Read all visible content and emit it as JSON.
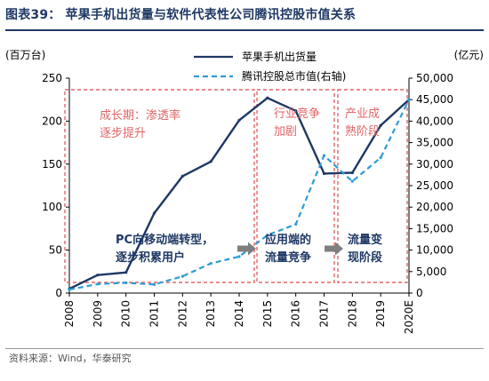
{
  "figure_title": "图表39：  苹果手机出货量与软件代表性公司腾讯控股市值关系",
  "source": "资料来源：Wind，华泰研究",
  "chart_data": {
    "type": "line",
    "categories": [
      "2008",
      "2009",
      "2010",
      "2011",
      "2012",
      "2013",
      "2014",
      "2015",
      "2016",
      "2017",
      "2018",
      "2019",
      "2020E"
    ],
    "left_unit": "(百万台)",
    "right_unit": "(亿元)",
    "ylim_left": [
      0,
      250
    ],
    "ylim_right": [
      0,
      50000
    ],
    "left_ticks": [
      "0",
      "50",
      "100",
      "150",
      "200",
      "250"
    ],
    "right_ticks": [
      "0",
      "5,000",
      "10,000",
      "15,000",
      "20,000",
      "25,000",
      "30,000",
      "35,000",
      "40,000",
      "45,000",
      "50,000"
    ],
    "series": [
      {
        "name": "苹果手机出货量",
        "axis": "left",
        "color": "#1f3864",
        "style": "solid",
        "values": [
          5,
          21,
          24,
          93,
          136,
          153,
          201,
          227,
          212,
          139,
          140,
          195,
          225
        ]
      },
      {
        "name": "腾讯控股总市值(右轴)",
        "axis": "right",
        "color": "#2e9bd6",
        "style": "dashed",
        "values": [
          800,
          2100,
          2400,
          2000,
          3900,
          6900,
          8500,
          13500,
          16000,
          32000,
          26000,
          31500,
          45000
        ]
      }
    ],
    "annotations": [
      {
        "text_lines": [
          "成长期：渗透率",
          "逐步提升"
        ],
        "color": "#e06666"
      },
      {
        "text_lines": [
          "行业竞争",
          "加剧"
        ],
        "color": "#e06666"
      },
      {
        "text_lines": [
          "产业成",
          "熟阶段"
        ],
        "color": "#e06666"
      },
      {
        "text_lines": [
          "PC向移动端转型，",
          "逐步积累用户"
        ],
        "color": "#1f3864"
      },
      {
        "text_lines": [
          "应用端的",
          "流量竞争"
        ],
        "color": "#1f3864"
      },
      {
        "text_lines": [
          "流量变",
          "现阶段"
        ],
        "color": "#1f3864"
      }
    ],
    "arrow_color": "#7f7f7f",
    "box_color": "#e06666"
  }
}
